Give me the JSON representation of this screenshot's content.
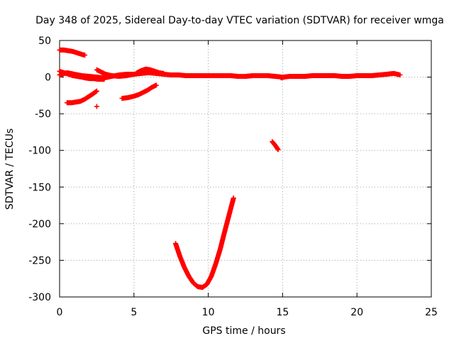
{
  "chart_data": {
    "type": "scatter",
    "title": "Day 348 of 2025, Sidereal Day-to-day VTEC variation (SDTVAR) for receiver wmga",
    "xlabel": "GPS time / hours",
    "ylabel": "SDTVAR / TECUs",
    "xlim": [
      0,
      25
    ],
    "ylim": [
      -300,
      50
    ],
    "xticks": [
      0,
      5,
      10,
      15,
      20,
      25
    ],
    "yticks": [
      50,
      0,
      -50,
      -100,
      -150,
      -200,
      -250,
      -300
    ],
    "grid": true,
    "legend": "none",
    "series": [
      {
        "name": "SDTVAR",
        "color": "#ff0000",
        "marker": "+",
        "segments": [
          {
            "name": "near-zero-band",
            "x": [
              0.0,
              0.5,
              1.0,
              1.5,
              2.0,
              2.5,
              3.0,
              3.5,
              4.0,
              4.5,
              5.0,
              5.5,
              6.0,
              6.5,
              7.0,
              7.5,
              8.0,
              8.5,
              9.0,
              9.5,
              10.0,
              10.5,
              11.0,
              11.5,
              12.0,
              12.5,
              13.0,
              13.5,
              14.0,
              14.5,
              15.0,
              15.5,
              16.0,
              16.5,
              17.0,
              17.5,
              18.0,
              18.5,
              19.0,
              19.5,
              20.0,
              20.5,
              21.0,
              21.5,
              22.0,
              22.5,
              22.9
            ],
            "y": [
              3,
              6,
              4,
              2,
              1,
              0,
              -1,
              1,
              3,
              4,
              4,
              5,
              6,
              5,
              4,
              3,
              3,
              2,
              2,
              2,
              2,
              2,
              2,
              2,
              1,
              1,
              2,
              2,
              2,
              1,
              0,
              1,
              1,
              1,
              2,
              2,
              2,
              2,
              1,
              1,
              2,
              2,
              2,
              3,
              4,
              5,
              3
            ]
          },
          {
            "name": "descending-arc-upper",
            "x": [
              0.0,
              0.3,
              0.6,
              0.9,
              1.2,
              1.5,
              1.7,
              2.0,
              2.3,
              2.6,
              3.0
            ],
            "y": [
              8,
              6,
              4,
              2,
              1,
              0,
              -1,
              -2,
              -2,
              -3,
              -3
            ]
          },
          {
            "name": "rising-arc-1",
            "x": [
              2.5,
              2.8,
              3.1,
              3.5,
              4.0,
              4.5,
              5.0,
              5.5
            ],
            "y": [
              10,
              7,
              4,
              2,
              1,
              2,
              4,
              6
            ]
          },
          {
            "name": "bump-near-6h",
            "x": [
              5.2,
              5.5,
              5.8,
              6.1,
              6.4,
              6.7,
              7.0
            ],
            "y": [
              6,
              9,
              11,
              10,
              8,
              6,
              5
            ]
          },
          {
            "name": "top-left-arc",
            "x": [
              0.0,
              0.3,
              0.6,
              0.9,
              1.2,
              1.5,
              1.7
            ],
            "y": [
              37,
              37,
              36,
              35,
              33,
              31,
              30
            ]
          },
          {
            "name": "negative-arc-left",
            "x": [
              0.5,
              0.8,
              1.1,
              1.4,
              1.7,
              2.0,
              2.3,
              2.5
            ],
            "y": [
              -35,
              -35,
              -34,
              -33,
              -30,
              -26,
              -22,
              -19
            ]
          },
          {
            "name": "isolated-point",
            "x": [
              2.5
            ],
            "y": [
              -40
            ]
          },
          {
            "name": "negative-arc-middle",
            "x": [
              4.2,
              4.6,
              5.0,
              5.3,
              5.6,
              5.9,
              6.2,
              6.5
            ],
            "y": [
              -29,
              -28,
              -26,
              -24,
              -21,
              -18,
              -14,
              -11
            ]
          },
          {
            "name": "short-segment-14h",
            "x": [
              14.3,
              14.5,
              14.7
            ],
            "y": [
              -88,
              -93,
              -99
            ]
          },
          {
            "name": "dip-near-10h",
            "x": [
              7.8,
              8.1,
              8.4,
              8.7,
              9.0,
              9.3,
              9.6,
              9.9,
              10.2,
              10.5,
              10.8,
              11.1,
              11.4,
              11.7
            ],
            "y": [
              -227,
              -245,
              -260,
              -272,
              -281,
              -286,
              -287,
              -283,
              -272,
              -255,
              -235,
              -211,
              -188,
              -165
            ]
          },
          {
            "name": "blip-near-15h",
            "x": [
              14.9,
              15.1
            ],
            "y": [
              -1,
              0
            ]
          }
        ]
      }
    ]
  }
}
